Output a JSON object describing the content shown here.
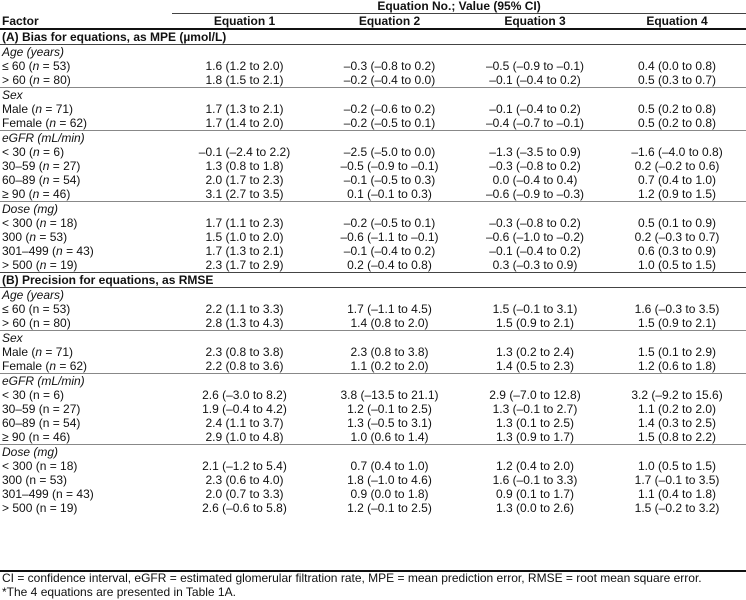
{
  "header": {
    "super": "Equation No.; Value (95% CI)",
    "factor": "Factor",
    "columns": [
      "Equation 1",
      "Equation 2",
      "Equation 3",
      "Equation 4"
    ]
  },
  "sections": [
    {
      "title": "(A) Bias for equations, as MPE (µmol/L)",
      "groups": [
        {
          "label": "Age (years)",
          "rows": [
            {
              "label": "≤ 60 (n = 53)",
              "label_parts": [
                "≤ 60 (",
                "n",
                " = 53)"
              ],
              "values": [
                "1.6 (1.2 to 2.0)",
                "–0.3 (–0.8 to 0.2)",
                "–0.5 (–0.9 to –0.1)",
                "0.4 (0.0 to 0.8)"
              ]
            },
            {
              "label": "> 60 (n = 80)",
              "label_parts": [
                "> 60 (",
                "n",
                " = 80)"
              ],
              "values": [
                "1.8 (1.5 to 2.1)",
                "–0.2 (–0.4 to 0.0)",
                "–0.1 (–0.4 to 0.2)",
                "0.5 (0.3 to 0.7)"
              ]
            }
          ]
        },
        {
          "label": "Sex",
          "rows": [
            {
              "label": "Male (n = 71)",
              "label_parts": [
                "Male (",
                "n",
                " = 71)"
              ],
              "values": [
                "1.7 (1.3 to 2.1)",
                "–0.2 (–0.6 to 0.2)",
                "–0.1 (–0.4 to 0.2)",
                "0.5 (0.2 to 0.8)"
              ]
            },
            {
              "label": "Female (n = 62)",
              "label_parts": [
                "Female (",
                "n",
                " = 62)"
              ],
              "values": [
                "1.7 (1.4 to 2.0)",
                "–0.2 (–0.5 to 0.1)",
                "–0.4 (–0.7 to –0.1)",
                "0.5 (0.2 to 0.8)"
              ]
            }
          ]
        },
        {
          "label": "eGFR (mL/min)",
          "rows": [
            {
              "label": "< 30 (n = 6)",
              "label_parts": [
                "< 30 (",
                "n",
                " = 6)"
              ],
              "values": [
                "–0.1 (–2.4 to 2.2)",
                "–2.5 (–5.0 to 0.0)",
                "–1.3 (–3.5 to 0.9)",
                "–1.6 (–4.0 to 0.8)"
              ]
            },
            {
              "label": "30–59 (n = 27)",
              "label_parts": [
                "30–59 (",
                "n",
                " = 27)"
              ],
              "values": [
                "1.3 (0.8 to 1.8)",
                "–0.5 (–0.9 to –0.1)",
                "–0.3 (–0.8 to 0.2)",
                "0.2 (–0.2 to 0.6)"
              ]
            },
            {
              "label": "60–89 (n = 54)",
              "label_parts": [
                "60–89 (",
                "n",
                " = 54)"
              ],
              "values": [
                "2.0 (1.7 to 2.3)",
                "–0.1 (–0.5 to 0.3)",
                "0.0 (–0.4 to 0.4)",
                "0.7 (0.4 to 1.0)"
              ]
            },
            {
              "label": "≥ 90 (n = 46)",
              "label_parts": [
                "≥ 90 (",
                "n",
                " = 46)"
              ],
              "values": [
                "3.1 (2.7 to 3.5)",
                "0.1 (–0.1 to 0.3)",
                "–0.6 (–0.9 to –0.3)",
                "1.2 (0.9 to 1.5)"
              ]
            }
          ]
        },
        {
          "label": "Dose (mg)",
          "rows": [
            {
              "label": "< 300 (n = 18)",
              "label_parts": [
                "< 300 (",
                "n",
                " = 18)"
              ],
              "values": [
                "1.7 (1.1 to 2.3)",
                "–0.2 (–0.5 to 0.1)",
                "–0.3 (–0.8 to 0.2)",
                "0.5 (0.1 to 0.9)"
              ]
            },
            {
              "label": "300 (n = 53)",
              "label_parts": [
                "300 (",
                "n",
                " = 53)"
              ],
              "values": [
                "1.5 (1.0 to 2.0)",
                "–0.6 (–1.1 to –0.1)",
                "–0.6 (–1.0 to –0.2)",
                "0.2 (–0.3 to 0.7)"
              ]
            },
            {
              "label": "301–499 (n = 43)",
              "label_parts": [
                "301–499 (",
                "n",
                " = 43)"
              ],
              "values": [
                "1.7 (1.3 to 2.1)",
                "–0.1 (–0.4 to 0.2)",
                "–0.1 (–0.4 to 0.2)",
                "0.6 (0.3 to 0.9)"
              ]
            },
            {
              "label": "> 500 (n = 19)",
              "label_parts": [
                "> 500 (",
                "n",
                " = 19)"
              ],
              "values": [
                "2.3 (1.7 to 2.9)",
                "0.2 (–0.4 to 0.8)",
                "0.3 (–0.3 to 0.9)",
                "1.0 (0.5 to 1.5)"
              ]
            }
          ]
        }
      ]
    },
    {
      "title": "(B) Precision for equations, as RMSE",
      "groups": [
        {
          "label": "Age (years)",
          "rows": [
            {
              "label": "≤ 60 (n = 53)",
              "values": [
                "2.2 (1.1 to 3.3)",
                "1.7 (–1.1 to 4.5)",
                "1.5 (–0.1 to 3.1)",
                "1.6 (–0.3 to 3.5)"
              ]
            },
            {
              "label": "> 60 (n = 80)",
              "values": [
                "2.8 (1.3 to 4.3)",
                "1.4 (0.8 to 2.0)",
                "1.5 (0.9 to 2.1)",
                "1.5  (0.9 to 2.1)"
              ]
            }
          ]
        },
        {
          "label": "Sex",
          "rows": [
            {
              "label": "Male (n = 71)",
              "label_parts": [
                "Male (",
                "n",
                " = 71)"
              ],
              "values": [
                "2.3 (0.8 to 3.8)",
                "2.3 (0.8 to 3.8)",
                "1.3 (0.2 to 2.4)",
                "1.5 (0.1 to 2.9)"
              ]
            },
            {
              "label": "Female (n = 62)",
              "label_parts": [
                "Female (",
                "n",
                " = 62)"
              ],
              "values": [
                "2.2 (0.8 to 3.6)",
                "1.1 (0.2 to 2.0)",
                "1.4 (0.5 to 2.3)",
                "1.2 (0.6 to 1.8)"
              ]
            }
          ]
        },
        {
          "label": "eGFR (mL/min)",
          "rows": [
            {
              "label": "< 30 (n = 6)",
              "values": [
                "2.6 (–3.0 to 8.2)",
                "3.8 (–13.5 to 21.1)",
                "2.9 (–7.0 to 12.8)",
                "3.2 (–9.2 to 15.6)"
              ]
            },
            {
              "label": "30–59 (n = 27)",
              "values": [
                "1.9 (–0.4 to 4.2)",
                "1.2 (–0.1 to 2.5)",
                "1.3 (–0.1 to 2.7)",
                "1.1 (0.2 to 2.0)"
              ]
            },
            {
              "label": "60–89 (n = 54)",
              "values": [
                "2.4 (1.1 to 3.7)",
                "1.3 (–0.5 to 3.1)",
                "1.3 (0.1 to 2.5)",
                "1.4 (0.3 to 2.5)"
              ]
            },
            {
              "label": "≥ 90 (n = 46)",
              "values": [
                "2.9 (1.0 to 4.8)",
                "1.0 (0.6 to 1.4)",
                "1.3 (0.9 to 1.7)",
                "1.5 (0.8 to 2.2)"
              ]
            }
          ]
        },
        {
          "label": "Dose (mg)",
          "rows": [
            {
              "label": "< 300 (n = 18)",
              "values": [
                "2.1 (–1.2 to 5.4)",
                "0.7 (0.4 to 1.0)",
                "1.2 (0.4 to 2.0)",
                "1.0 (0.5 to 1.5)"
              ]
            },
            {
              "label": "300 (n = 53)",
              "values": [
                "2.3 (0.6 to 4.0)",
                "1.8 (–1.0 to 4.6)",
                "1.6 (–0.1 to 3.3)",
                "1.7 (–0.1 to 3.5)"
              ]
            },
            {
              "label": "301–499 (n = 43)",
              "values": [
                "2.0 (0.7 to 3.3)",
                "0.9 (0.0 to 1.8)",
                "0.9 (0.1 to 1.7)",
                "1.1 (0.4 to 1.8)"
              ]
            },
            {
              "label": "> 500 (n = 19)",
              "values": [
                "2.6 (–0.6 to 5.8)",
                "1.2 (–0.1 to 2.5)",
                "1.3 (0.0 to 2.6)",
                "1.5 (–0.2 to 3.2)"
              ]
            }
          ]
        }
      ]
    }
  ],
  "footnotes": [
    "CI = confidence interval, eGFR = estimated glomerular filtration rate, MPE = mean prediction error, RMSE = root mean square error.",
    "*The 4 equations are presented in Table 1A."
  ]
}
